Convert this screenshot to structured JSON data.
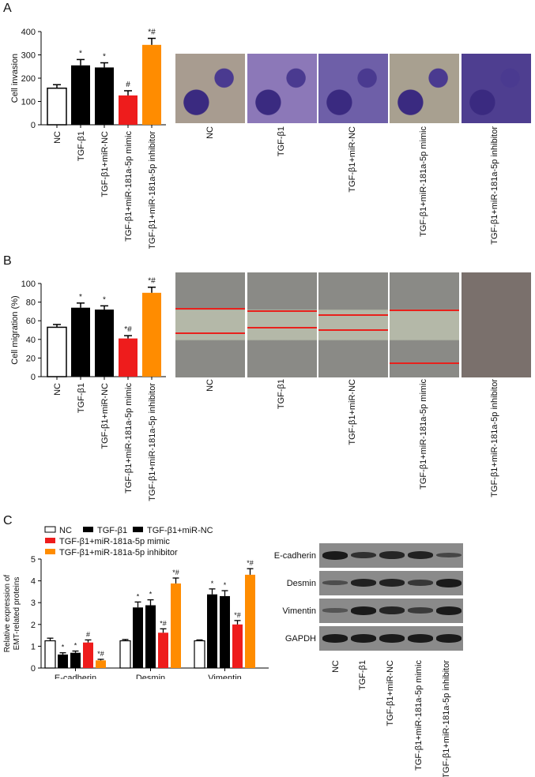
{
  "groups": [
    "NC",
    "TGF-β1",
    "TGF-β1+miR-NC",
    "TGF-β1+miR-181a-5p mimic",
    "TGF-β1+miR-181a-5p inhibitor"
  ],
  "colors": {
    "NC": "#ffffff",
    "TGF": "#000000",
    "miRNC": "#000000",
    "mimic": "#ee1c1c",
    "inhibitor": "#ff8c00"
  },
  "panels": {
    "a": {
      "letter": "A"
    },
    "b": {
      "letter": "B"
    },
    "c": {
      "letter": "C"
    }
  },
  "blot": {
    "rows": [
      "E-cadherin",
      "Desmin",
      "Vimentin",
      "GAPDH"
    ]
  },
  "chart_data": [
    {
      "type": "bar",
      "panel": "A",
      "ylabel": "Cell invasion",
      "ylim": [
        0,
        400
      ],
      "yticks": [
        0,
        100,
        200,
        300,
        400
      ],
      "categories": [
        "NC",
        "TGF-β1",
        "TGF-β1+miR-NC",
        "TGF-β1+miR-181a-5p mimic",
        "TGF-β1+miR-181a-5p inhibitor"
      ],
      "values": [
        157,
        255,
        246,
        126,
        343
      ],
      "errors": [
        15,
        25,
        20,
        20,
        28
      ],
      "annotations": [
        "",
        "*",
        "*",
        "#",
        "*#"
      ]
    },
    {
      "type": "bar",
      "panel": "B",
      "ylabel": "Cell migration (%)",
      "ylim": [
        0,
        100
      ],
      "yticks": [
        0,
        20,
        40,
        60,
        80,
        100
      ],
      "categories": [
        "NC",
        "TGF-β1",
        "TGF-β1+miR-NC",
        "TGF-β1+miR-181a-5p mimic",
        "TGF-β1+miR-181a-5p inhibitor"
      ],
      "values": [
        53,
        74,
        72,
        41,
        90
      ],
      "errors": [
        3,
        5,
        4,
        3,
        6
      ],
      "annotations": [
        "",
        "*",
        "*",
        "*#",
        "*#"
      ]
    },
    {
      "type": "bar",
      "panel": "C",
      "ylabel": "Relative expression of EMT-related proteins",
      "ylim": [
        0,
        5
      ],
      "yticks": [
        0,
        1,
        2,
        3,
        4,
        5
      ],
      "categories": [
        "E-cadherin",
        "Desmin",
        "Vimentin"
      ],
      "legend": [
        "NC",
        "TGF-β1",
        "TGF-β1+miR-NC",
        "TGF-β1+miR-181a-5p mimic",
        "TGF-β1+miR-181a-5p inhibitor"
      ],
      "series": [
        {
          "name": "NC",
          "values": [
            1.25,
            1.25,
            1.25
          ],
          "errors": [
            0.12,
            0.06,
            0.04
          ],
          "annotations": [
            "",
            "",
            ""
          ]
        },
        {
          "name": "TGF-β1",
          "values": [
            0.62,
            2.78,
            3.38
          ],
          "errors": [
            0.08,
            0.25,
            0.25
          ],
          "annotations": [
            "*",
            "*",
            "*"
          ]
        },
        {
          "name": "TGF-β1+miR-NC",
          "values": [
            0.7,
            2.88,
            3.3
          ],
          "errors": [
            0.08,
            0.25,
            0.25
          ],
          "annotations": [
            "*",
            "*",
            "*"
          ]
        },
        {
          "name": "TGF-β1+miR-181a-5p mimic",
          "values": [
            1.17,
            1.62,
            2.0
          ],
          "errors": [
            0.12,
            0.18,
            0.18
          ],
          "annotations": [
            "#",
            "*#",
            "*#"
          ]
        },
        {
          "name": "TGF-β1+miR-181a-5p inhibitor",
          "values": [
            0.35,
            3.88,
            4.28
          ],
          "errors": [
            0.05,
            0.25,
            0.28
          ],
          "annotations": [
            "*#",
            "*#",
            "*#"
          ]
        }
      ]
    }
  ]
}
